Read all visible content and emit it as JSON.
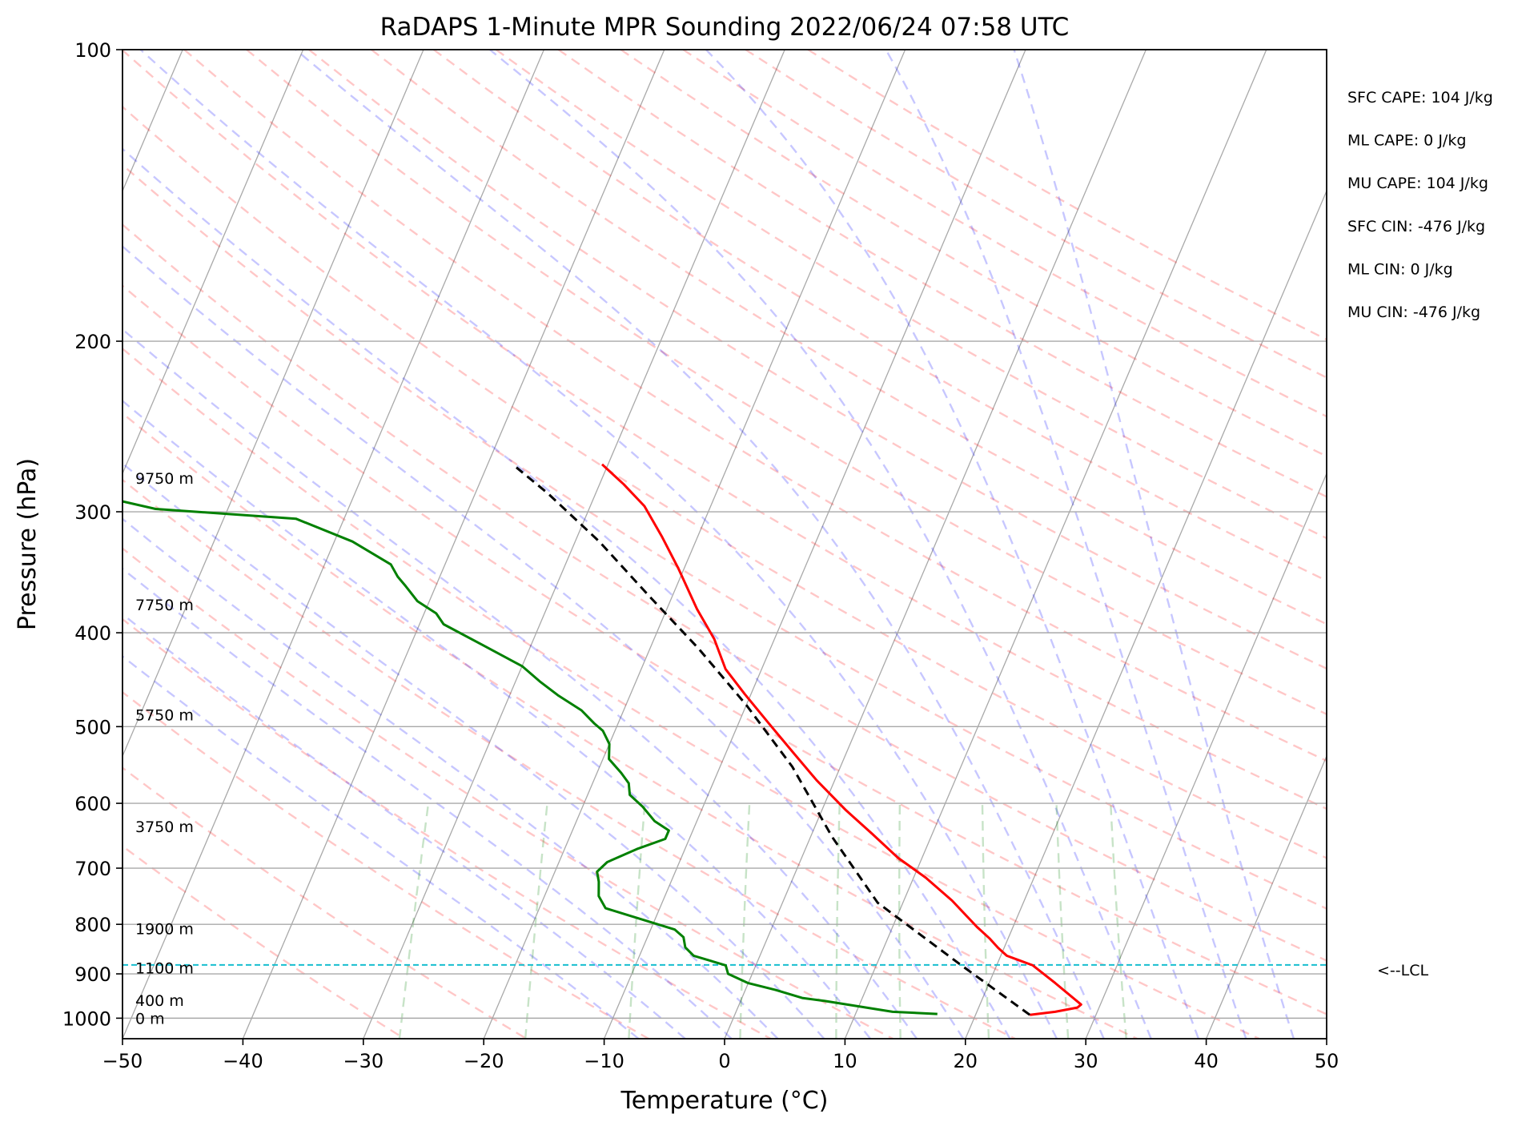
{
  "chart_data": {
    "type": "line",
    "title": "RaDAPS 1-Minute MPR Sounding 2022/06/24 07:58 UTC",
    "xlabel": "Temperature (°C)",
    "ylabel": "Pressure (hPa)",
    "xlim": [
      -50,
      50
    ],
    "ylim": [
      1050,
      100
    ],
    "y_scale": "log",
    "skew": 35,
    "grid": true,
    "x_ticks": [
      -50,
      -40,
      -30,
      -20,
      -10,
      0,
      10,
      20,
      30,
      40,
      50
    ],
    "x_tick_labels": [
      "−50",
      "−40",
      "−30",
      "−20",
      "−10",
      "0",
      "10",
      "20",
      "30",
      "40",
      "50"
    ],
    "y_ticks": [
      100,
      200,
      300,
      400,
      500,
      600,
      700,
      800,
      900,
      1000
    ],
    "y_tick_labels": [
      "100",
      "200",
      "300",
      "400",
      "500",
      "600",
      "700",
      "800",
      "900",
      "1000"
    ],
    "height_labels": [
      {
        "p": 1000,
        "text": "0 m"
      },
      {
        "p": 958,
        "text": "400 m"
      },
      {
        "p": 887,
        "text": "1100 m"
      },
      {
        "p": 808,
        "text": "1900 m"
      },
      {
        "p": 634,
        "text": "3750 m"
      },
      {
        "p": 486,
        "text": "5750 m"
      },
      {
        "p": 374,
        "text": "7750 m"
      },
      {
        "p": 277,
        "text": "9750 m"
      }
    ],
    "lcl": {
      "p": 881,
      "label": "<--LCL"
    },
    "indices": [
      "SFC CAPE: 104 J/kg",
      "ML CAPE: 0 J/kg",
      "MU CAPE: 104 J/kg",
      "SFC CIN: -476 J/kg",
      "ML CIN: 0 J/kg",
      "MU CIN: -476 J/kg"
    ],
    "series": [
      {
        "key": "temperature",
        "color": "#ff0000",
        "points": [
          [
            24.5,
            992
          ],
          [
            26.5,
            985
          ],
          [
            28.2,
            975
          ],
          [
            28.4,
            968
          ],
          [
            25.5,
            920
          ],
          [
            23,
            882
          ],
          [
            20.5,
            862
          ],
          [
            19.5,
            846
          ],
          [
            18.5,
            828
          ],
          [
            17,
            805
          ],
          [
            14,
            756
          ],
          [
            11,
            716
          ],
          [
            8,
            683
          ],
          [
            5,
            645
          ],
          [
            2,
            610
          ],
          [
            -1.5,
            568
          ],
          [
            -4.5,
            531
          ],
          [
            -7.5,
            496
          ],
          [
            -10.5,
            463
          ],
          [
            -13,
            436
          ],
          [
            -15,
            406
          ],
          [
            -17.5,
            378
          ],
          [
            -20.5,
            343
          ],
          [
            -23,
            318
          ],
          [
            -25.5,
            296
          ],
          [
            -28,
            281
          ],
          [
            -30.5,
            268
          ]
        ]
      },
      {
        "key": "dewpoint",
        "color": "#008000",
        "points": [
          [
            16.8,
            990
          ],
          [
            13,
            985
          ],
          [
            7,
            960
          ],
          [
            5,
            953
          ],
          [
            2.5,
            935
          ],
          [
            0,
            920
          ],
          [
            -2,
            900
          ],
          [
            -2.5,
            882
          ],
          [
            -5.5,
            862
          ],
          [
            -6.5,
            845
          ],
          [
            -7,
            825
          ],
          [
            -8,
            810
          ],
          [
            -14.5,
            770
          ],
          [
            -15.5,
            748
          ],
          [
            -16,
            723
          ],
          [
            -16.5,
            706
          ],
          [
            -16,
            690
          ],
          [
            -14,
            669
          ],
          [
            -12,
            653
          ],
          [
            -12,
            640
          ],
          [
            -13.5,
            626
          ],
          [
            -15,
            605
          ],
          [
            -16.5,
            588
          ],
          [
            -17,
            572
          ],
          [
            -18,
            558
          ],
          [
            -19.5,
            540
          ],
          [
            -20,
            521
          ],
          [
            -21,
            505
          ],
          [
            -22,
            496
          ],
          [
            -23.5,
            481
          ],
          [
            -26,
            464
          ],
          [
            -28,
            449
          ],
          [
            -30,
            433
          ],
          [
            -34,
            412
          ],
          [
            -38,
            392
          ],
          [
            -39,
            382
          ],
          [
            -41,
            371
          ],
          [
            -42.5,
            358
          ],
          [
            -43.5,
            350
          ],
          [
            -44.5,
            340
          ],
          [
            -48.5,
            322
          ],
          [
            -54,
            305
          ],
          [
            -66,
            298
          ],
          [
            -70,
            291
          ],
          [
            -71,
            283
          ],
          [
            -76,
            276
          ]
        ]
      },
      {
        "key": "parcel",
        "color": "#000000",
        "dashed": true,
        "points": [
          [
            24.5,
            992
          ],
          [
            17,
            881
          ],
          [
            7.9,
            760
          ],
          [
            1.8,
            650
          ],
          [
            -4,
            550
          ],
          [
            -10,
            475
          ],
          [
            -16,
            415
          ],
          [
            -22,
            366
          ],
          [
            -28,
            322
          ],
          [
            -34,
            287
          ],
          [
            -37.5,
            270
          ]
        ]
      }
    ]
  }
}
